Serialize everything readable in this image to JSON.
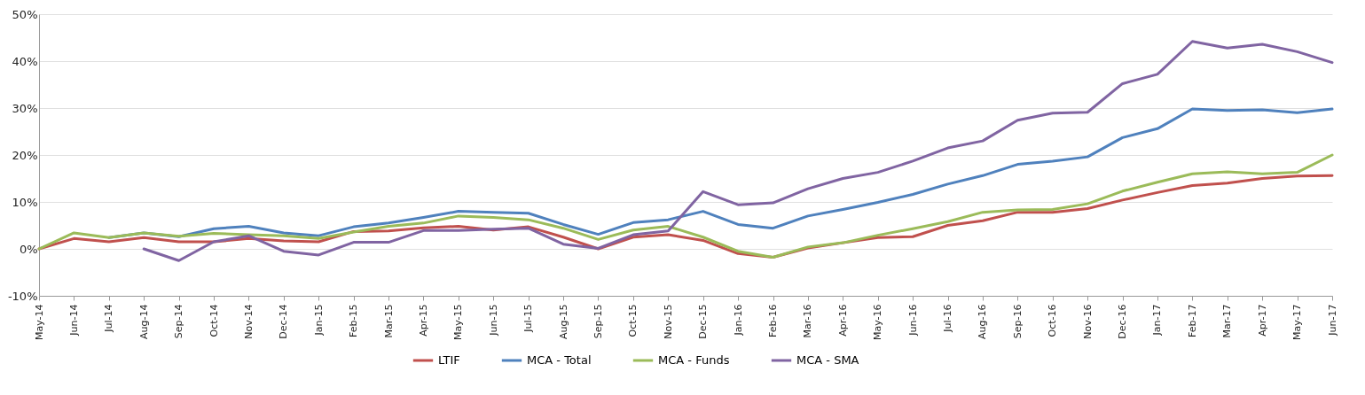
{
  "chart_data": {
    "type": "line",
    "categories": [
      "May-14",
      "Jun-14",
      "Jul-14",
      "Aug-14",
      "Sep-14",
      "Oct-14",
      "Nov-14",
      "Dec-14",
      "Jan-15",
      "Feb-15",
      "Mar-15",
      "Apr-15",
      "May-15",
      "Jun-15",
      "Jul-15",
      "Aug-15",
      "Sep-15",
      "Oct-15",
      "Nov-15",
      "Dec-15",
      "Jan-16",
      "Feb-16",
      "Mar-16",
      "Apr-16",
      "May-16",
      "Jun-16",
      "Jul-16",
      "Aug-16",
      "Sep-16",
      "Oct-16",
      "Nov-16",
      "Dec-16",
      "Jan-17",
      "Feb-17",
      "Mar-17",
      "Apr-17",
      "May-17",
      "Jun-17"
    ],
    "series": [
      {
        "name": "LTIF",
        "color": "#c0504d",
        "values": [
          0,
          2.2,
          1.5,
          2.4,
          1.5,
          1.5,
          2.2,
          1.7,
          1.5,
          3.7,
          3.8,
          4.5,
          4.8,
          4.0,
          4.7,
          2.5,
          0,
          2.5,
          3.0,
          1.8,
          -1.0,
          -1.8,
          0.2,
          1.3,
          2.4,
          2.6,
          5.0,
          6.0,
          7.8,
          7.8,
          8.6,
          10.4,
          12.0,
          13.5,
          14.0,
          15.0,
          15.5,
          15.6
        ]
      },
      {
        "name": "MCA - Total",
        "color": "#4f81bd",
        "values": [
          null,
          null,
          2.4,
          3.4,
          2.6,
          4.3,
          4.8,
          3.4,
          2.8,
          4.7,
          5.5,
          6.7,
          8.0,
          7.8,
          7.6,
          5.2,
          3.1,
          5.6,
          6.2,
          8.0,
          5.2,
          4.4,
          7.0,
          8.4,
          9.9,
          11.6,
          13.8,
          15.6,
          18.0,
          18.7,
          19.6,
          23.7,
          25.6,
          29.8,
          29.5,
          29.6,
          29.0,
          29.8
        ]
      },
      {
        "name": "MCA - Funds",
        "color": "#9bbb59",
        "values": [
          0,
          3.4,
          2.4,
          3.4,
          2.7,
          3.3,
          3.0,
          2.8,
          2.2,
          3.6,
          4.8,
          5.5,
          7.0,
          6.7,
          6.2,
          4.4,
          2.0,
          4.0,
          4.8,
          2.5,
          -0.5,
          -1.8,
          0.4,
          1.3,
          2.9,
          4.3,
          5.8,
          7.8,
          8.3,
          8.4,
          9.6,
          12.3,
          14.2,
          16.0,
          16.4,
          16.0,
          16.3,
          20.0
        ]
      },
      {
        "name": "MCA - SMA",
        "color": "#8064a2",
        "values": [
          null,
          null,
          null,
          0,
          -2.5,
          1.5,
          2.8,
          -0.5,
          -1.3,
          1.4,
          1.4,
          3.9,
          3.9,
          4.2,
          4.4,
          1.0,
          0.1,
          3.0,
          3.8,
          12.2,
          9.4,
          9.8,
          12.8,
          15.0,
          16.3,
          18.7,
          21.5,
          23.0,
          27.4,
          28.9,
          29.1,
          35.2,
          37.2,
          44.2,
          42.8,
          43.6,
          42.0,
          39.7
        ]
      }
    ],
    "ylim": [
      -10,
      50
    ],
    "yticks": [
      {
        "value": -10,
        "label": "-10%"
      },
      {
        "value": 0,
        "label": "0%"
      },
      {
        "value": 10,
        "label": "10%"
      },
      {
        "value": 20,
        "label": "20%"
      },
      {
        "value": 30,
        "label": "30%"
      },
      {
        "value": 40,
        "label": "40%"
      },
      {
        "value": 50,
        "label": "50%"
      }
    ],
    "grid": "y",
    "legend": "bottom",
    "marker": "none",
    "line_style": "solid"
  }
}
